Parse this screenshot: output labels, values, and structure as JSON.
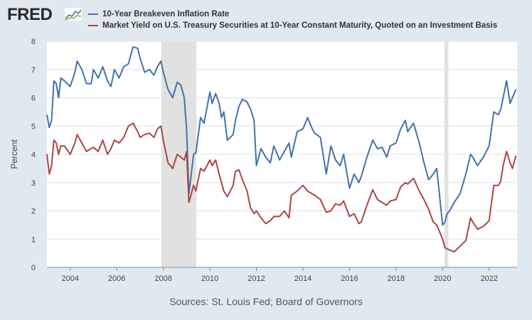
{
  "logo": {
    "text": "FRED"
  },
  "source_text": "Sources: St. Louis Fed; Board of Governors",
  "colors": {
    "background": "#e1e9f0",
    "plot_bg": "#ffffff",
    "grid": "#e3e3e3",
    "recession": "#e1e1e1",
    "series1": "#4572a7",
    "series2": "#aa4643"
  },
  "chart_data": {
    "type": "line",
    "title": "",
    "xlabel": "",
    "ylabel": "Percent",
    "xlim": [
      2003.0,
      2023.2
    ],
    "ylim": [
      0,
      8
    ],
    "y_ticks": [
      "0",
      "1",
      "2",
      "3",
      "4",
      "5",
      "6",
      "7",
      "8"
    ],
    "x_ticks": [
      "2004",
      "2006",
      "2008",
      "2010",
      "2012",
      "2014",
      "2016",
      "2018",
      "2020",
      "2022"
    ],
    "x_tick_values": [
      2004,
      2006,
      2008,
      2010,
      2012,
      2014,
      2016,
      2018,
      2020,
      2022
    ],
    "grid": true,
    "recessions": [
      [
        2007.92,
        2009.42
      ],
      [
        2020.08,
        2020.25
      ]
    ],
    "series": [
      {
        "name": "10-Year Breakeven Inflation Rate",
        "color": "#4572a7",
        "x": [
          2003.0,
          2003.1,
          2003.2,
          2003.3,
          2003.4,
          2003.5,
          2003.6,
          2003.75,
          2004.0,
          2004.2,
          2004.3,
          2004.5,
          2004.7,
          2004.9,
          2005.0,
          2005.2,
          2005.4,
          2005.6,
          2005.75,
          2005.9,
          2006.1,
          2006.3,
          2006.5,
          2006.7,
          2006.9,
          2007.0,
          2007.2,
          2007.4,
          2007.6,
          2007.75,
          2007.9,
          2008.0,
          2008.2,
          2008.4,
          2008.6,
          2008.75,
          2008.9,
          2009.0,
          2009.1,
          2009.3,
          2009.4,
          2009.6,
          2009.75,
          2010.0,
          2010.1,
          2010.25,
          2010.4,
          2010.5,
          2010.6,
          2010.75,
          2011.0,
          2011.1,
          2011.25,
          2011.4,
          2011.6,
          2011.75,
          2011.9,
          2012.0,
          2012.2,
          2012.4,
          2012.6,
          2012.75,
          2013.0,
          2013.2,
          2013.4,
          2013.5,
          2013.75,
          2014.0,
          2014.2,
          2014.4,
          2014.5,
          2014.75,
          2015.0,
          2015.2,
          2015.4,
          2015.6,
          2015.75,
          2016.0,
          2016.2,
          2016.4,
          2016.5,
          2016.75,
          2017.0,
          2017.2,
          2017.4,
          2017.6,
          2017.75,
          2018.0,
          2018.2,
          2018.4,
          2018.5,
          2018.75,
          2019.0,
          2019.2,
          2019.4,
          2019.6,
          2019.75,
          2020.0,
          2020.1,
          2020.2,
          2020.3,
          2020.5,
          2020.75,
          2021.0,
          2021.2,
          2021.3,
          2021.5,
          2021.75,
          2022.0,
          2022.2,
          2022.4,
          2022.5,
          2022.6,
          2022.75,
          2022.9,
          2023.0,
          2023.15
        ],
        "values": [
          5.4,
          4.95,
          5.2,
          6.6,
          6.5,
          6.0,
          6.7,
          6.6,
          6.4,
          6.9,
          7.3,
          7.0,
          6.5,
          6.5,
          7.0,
          6.7,
          7.1,
          6.6,
          6.4,
          7.0,
          6.7,
          7.1,
          7.2,
          7.8,
          7.75,
          7.4,
          6.9,
          7.0,
          6.8,
          7.1,
          7.3,
          6.9,
          6.3,
          6.0,
          6.55,
          6.45,
          6.0,
          4.9,
          2.6,
          4.0,
          4.05,
          5.3,
          5.1,
          6.2,
          5.8,
          6.15,
          5.8,
          5.3,
          5.5,
          4.5,
          4.7,
          5.2,
          5.7,
          5.95,
          5.85,
          5.6,
          5.2,
          3.6,
          4.2,
          3.9,
          3.7,
          4.3,
          3.8,
          4.1,
          4.4,
          3.9,
          4.8,
          4.9,
          5.3,
          4.9,
          4.75,
          4.6,
          3.3,
          4.3,
          3.8,
          3.6,
          4.0,
          2.8,
          3.3,
          3.0,
          3.2,
          3.9,
          4.5,
          4.2,
          4.25,
          3.9,
          4.3,
          4.4,
          4.9,
          5.2,
          4.8,
          5.1,
          4.4,
          3.7,
          3.1,
          3.3,
          3.5,
          1.5,
          1.6,
          1.9,
          2.0,
          2.3,
          2.6,
          3.3,
          4.0,
          3.9,
          3.6,
          3.9,
          4.3,
          5.5,
          5.4,
          5.6,
          6.0,
          6.6,
          5.8,
          6.0,
          6.3
        ]
      },
      {
        "name": "Market Yield on U.S. Treasury Securities at 10-Year Constant Maturity, Quoted on an Investment Basis",
        "color": "#aa4643",
        "x": [
          2003.0,
          2003.1,
          2003.2,
          2003.3,
          2003.4,
          2003.5,
          2003.6,
          2003.75,
          2004.0,
          2004.2,
          2004.3,
          2004.5,
          2004.7,
          2004.9,
          2005.0,
          2005.2,
          2005.4,
          2005.6,
          2005.75,
          2005.9,
          2006.1,
          2006.3,
          2006.5,
          2006.7,
          2006.9,
          2007.0,
          2007.2,
          2007.4,
          2007.6,
          2007.75,
          2007.9,
          2008.0,
          2008.2,
          2008.4,
          2008.6,
          2008.75,
          2008.9,
          2009.0,
          2009.1,
          2009.3,
          2009.4,
          2009.6,
          2009.75,
          2010.0,
          2010.1,
          2010.25,
          2010.4,
          2010.5,
          2010.6,
          2010.75,
          2011.0,
          2011.1,
          2011.25,
          2011.4,
          2011.6,
          2011.75,
          2011.9,
          2012.0,
          2012.2,
          2012.4,
          2012.6,
          2012.75,
          2013.0,
          2013.2,
          2013.4,
          2013.5,
          2013.75,
          2014.0,
          2014.2,
          2014.4,
          2014.5,
          2014.75,
          2015.0,
          2015.2,
          2015.4,
          2015.6,
          2015.75,
          2016.0,
          2016.2,
          2016.4,
          2016.5,
          2016.75,
          2017.0,
          2017.2,
          2017.4,
          2017.6,
          2017.75,
          2018.0,
          2018.2,
          2018.4,
          2018.5,
          2018.75,
          2019.0,
          2019.2,
          2019.4,
          2019.6,
          2019.75,
          2020.0,
          2020.1,
          2020.2,
          2020.3,
          2020.5,
          2020.75,
          2021.0,
          2021.2,
          2021.3,
          2021.5,
          2021.75,
          2022.0,
          2022.2,
          2022.4,
          2022.5,
          2022.6,
          2022.75,
          2022.9,
          2023.0,
          2023.15
        ],
        "values": [
          4.0,
          3.3,
          3.6,
          4.5,
          4.4,
          4.0,
          4.3,
          4.3,
          4.0,
          4.4,
          4.7,
          4.4,
          4.1,
          4.2,
          4.25,
          4.1,
          4.5,
          4.0,
          4.2,
          4.5,
          4.4,
          4.6,
          5.0,
          5.1,
          4.8,
          4.6,
          4.7,
          4.75,
          4.6,
          4.9,
          5.0,
          4.5,
          3.7,
          3.5,
          4.0,
          3.9,
          3.8,
          4.1,
          2.3,
          2.9,
          2.7,
          3.5,
          3.4,
          3.8,
          3.6,
          3.8,
          3.3,
          3.0,
          2.7,
          2.5,
          2.9,
          3.4,
          3.45,
          3.1,
          2.7,
          2.1,
          1.9,
          2.0,
          1.75,
          1.55,
          1.65,
          1.8,
          1.8,
          2.0,
          1.75,
          2.55,
          2.7,
          2.9,
          2.7,
          2.6,
          2.55,
          2.4,
          1.95,
          2.0,
          2.25,
          2.2,
          2.35,
          1.8,
          1.9,
          1.55,
          1.6,
          2.2,
          2.75,
          2.4,
          2.3,
          2.2,
          2.35,
          2.4,
          2.85,
          3.0,
          2.95,
          3.15,
          2.7,
          2.4,
          2.05,
          1.6,
          1.5,
          1.0,
          0.7,
          0.65,
          0.62,
          0.55,
          0.75,
          0.95,
          1.75,
          1.6,
          1.35,
          1.45,
          1.65,
          2.9,
          2.9,
          3.05,
          3.6,
          4.1,
          3.7,
          3.5,
          3.95
        ]
      }
    ]
  }
}
